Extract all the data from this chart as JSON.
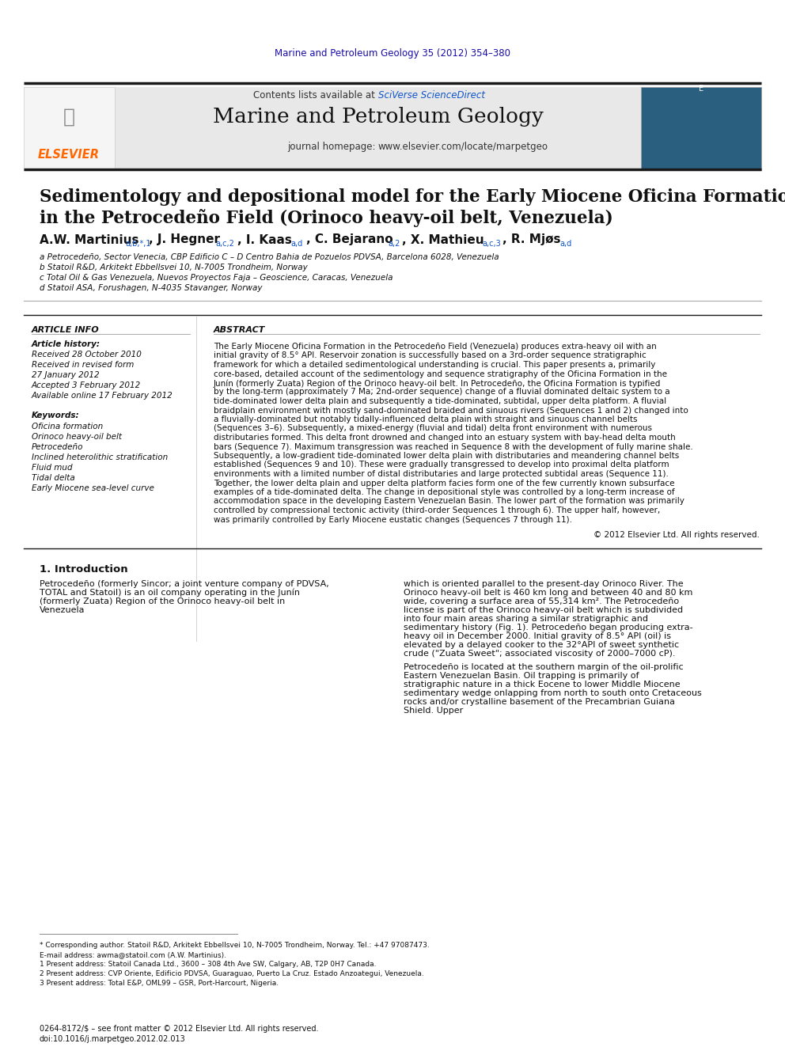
{
  "journal_ref": "Marine and Petroleum Geology 35 (2012) 354–380",
  "journal_ref_color": "#1a0dab",
  "header_bg": "#e8e8e8",
  "header_text_contents": "Contents lists available at ",
  "header_sciverse": "SciVerse ScienceDirect",
  "header_sciverse_color": "#1155cc",
  "header_journal_name": "Marine and Petroleum Geology",
  "header_homepage_prefix": "journal homepage: ",
  "header_homepage_url": "www.elsevier.com/locate/marpetgeo",
  "elsevier_text": "ELSEVIER",
  "elsevier_color": "#FF6600",
  "paper_title_line1": "Sedimentology and depositional model for the Early Miocene Oficina Formation",
  "paper_title_line2": "in the Petrocedeño Field (Orinoco heavy-oil belt, Venezuela)",
  "authors_main": "A.W. Martinius",
  "authors_super1": "a,b,*,1",
  "authors_rest": ", J. Hegner",
  "authors_super2": "a,c,2",
  "authors_rest2": ", I. Kaas",
  "authors_super3": "a,d",
  "authors_rest3": ", C. Bejarano",
  "authors_super4": "a,2",
  "authors_rest4": ", X. Mathieu",
  "authors_super5": "a,c,3",
  "authors_rest5": ", R. Mjøs",
  "authors_super6": "a,d",
  "affil_a": "a Petrocedeño, Sector Venecia, CBP Edificio C – D Centro Bahia de Pozuelos PDVSA, Barcelona 6028, Venezuela",
  "affil_b": "b Statoil R&D, Arkitekt Ebbellsvei 10, N-7005 Trondheim, Norway",
  "affil_c": "c Total Oil & Gas Venezuela, Nuevos Proyectos Faja – Geoscience, Caracas, Venezuela",
  "affil_d": "d Statoil ASA, Forushagen, N-4035 Stavanger, Norway",
  "article_info_title": "ARTICLE INFO",
  "article_history_title": "Article history:",
  "history_received": "Received 28 October 2010",
  "history_revised": "Received in revised form\n27 January 2012",
  "history_accepted": "Accepted 3 February 2012",
  "history_online": "Available online 17 February 2012",
  "keywords_title": "Keywords:",
  "keywords": [
    "Oficina formation",
    "Orinoco heavy-oil belt",
    "Petrocedeño",
    "Inclined heterolithic stratification",
    "Fluid mud",
    "Tidal delta",
    "Early Miocene sea-level curve"
  ],
  "abstract_title": "ABSTRACT",
  "abstract_text": "The Early Miocene Oficina Formation in the Petrocedeño Field (Venezuela) produces extra-heavy oil with an initial gravity of 8.5° API. Reservoir zonation is successfully based on a 3rd-order sequence stratigraphic framework for which a detailed sedimentological understanding is crucial. This paper presents a, primarily core-based, detailed account of the sedimentology and sequence stratigraphy of the Oficina Formation in the Junín (formerly Zuata) Region of the Orinoco heavy-oil belt. In Petrocedeño, the Oficina Formation is typified by the long-term (approximately 7 Ma; 2nd-order sequence) change of a fluvial dominated deltaic system to a tide-dominated lower delta plain and subsequently a tide-dominated, subtidal, upper delta platform. A fluvial braidplain environment with mostly sand-dominated braided and sinuous rivers (Sequences 1 and 2) changed into a fluvially-dominated but notably tidally-influenced delta plain with straight and sinuous channel belts (Sequences 3–6). Subsequently, a mixed-energy (fluvial and tidal) delta front environment with numerous distributaries formed. This delta front drowned and changed into an estuary system with bay-head delta mouth bars (Sequence 7). Maximum transgression was reached in Sequence 8 with the development of fully marine shale. Subsequently, a low-gradient tide-dominated lower delta plain with distributaries and meandering channel belts established (Sequences 9 and 10). These were gradually transgressed to develop into proximal delta platform environments with a limited number of distal distributaries and large protected subtidal areas (Sequence 11). Together, the lower delta plain and upper delta platform facies form one of the few currently known subsurface examples of a tide-dominated delta. The change in depositional style was controlled by a long-term increase of accommodation space in the developing Eastern Venezuelan Basin. The lower part of the formation was primarily controlled by compressional tectonic activity (third-order Sequences 1 through 6). The upper half, however, was primarily controlled by Early Miocene eustatic changes (Sequences 7 through 11).",
  "copyright_text": "© 2012 Elsevier Ltd. All rights reserved.",
  "section1_title": "1. Introduction",
  "section1_col1": "Petrocedeño (formerly Sincor; a joint venture company of PDVSA, TOTAL and Statoil) is an oil company operating in the Junín (formerly Zuata) Region of the Orinoco heavy-oil belt in Venezuela",
  "section1_col2": "which is oriented parallel to the present-day Orinoco River. The Orinoco heavy-oil belt is 460 km long and between 40 and 80 km wide, covering a surface area of 55,314 km². The Petrocedeño license is part of the Orinoco heavy-oil belt which is subdivided into four main areas sharing a similar stratigraphic and sedimentary history (Fig. 1). Petrocedeño began producing extra-heavy oil in December 2000. Initial gravity of 8.5° API (oil) is elevated by a delayed cooker to the 32°API of sweet synthetic crude (\"Zuata Sweet\"; associated viscosity of 2000–7000 cP).\n\nPetrocedeño is located at the southern margin of the oil-prolific Eastern Venezuelan Basin. Oil trapping is primarily of stratigraphic nature in a thick Eocene to lower Middle Miocene sedimentary wedge onlapping from north to south onto Cretaceous rocks and/or crystalline basement of the Precambrian Guiana Shield. Upper",
  "footnote_star": "* Corresponding author. Statoil R&D, Arkitekt Ebbellsvei 10, N-7005 Trondheim, Norway. Tel.: +47 97087473.",
  "footnote_email": "E-mail address: awma@statoil.com (A.W. Martinius).",
  "footnote_1": "1 Present address: Statoil Canada Ltd., 3600 – 308 4th Ave SW, Calgary, AB, T2P 0H7 Canada.",
  "footnote_2": "2 Present address: CVP Oriente, Edificio PDVSA, Guaraguao, Puerto La Cruz. Estado Anzoategui, Venezuela.",
  "footnote_3": "3 Present address: Total E&P, OML99 – GSR, Port-Harcourt, Nigeria.",
  "footer_text": "0264-8172/$ – see front matter © 2012 Elsevier Ltd. All rights reserved.\ndoi:10.1016/j.marpetgeo.2012.02.013",
  "bg_color": "#ffffff",
  "text_color": "#000000",
  "divider_color": "#333333",
  "thick_divider_color": "#1a1a1a"
}
